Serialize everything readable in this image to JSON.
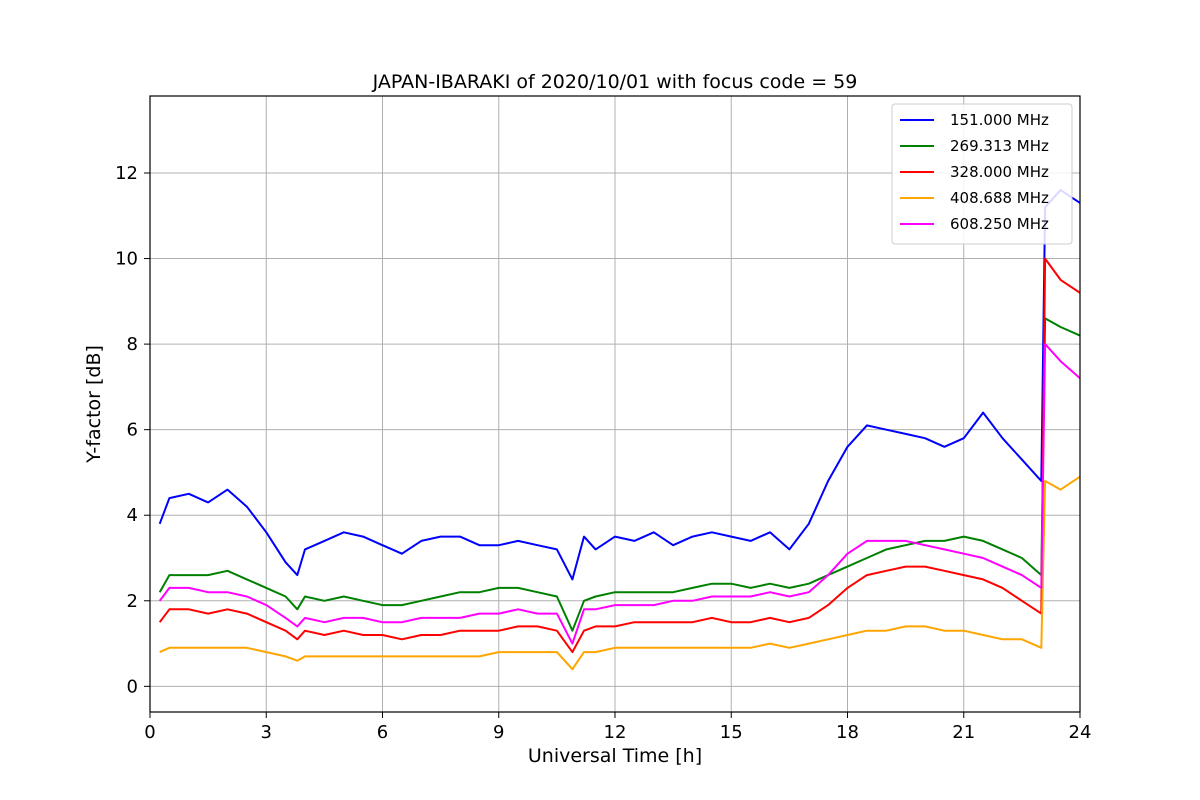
{
  "chart_data": {
    "type": "line",
    "title": "JAPAN-IBARAKI of 2020/10/01 with focus code = 59",
    "xlabel": "Universal Time [h]",
    "ylabel": "Y-factor [dB]",
    "xlim": [
      0,
      24
    ],
    "ylim": [
      -0.6,
      13.8
    ],
    "xticks": [
      0,
      3,
      6,
      9,
      12,
      15,
      18,
      21,
      24
    ],
    "yticks": [
      0,
      2,
      4,
      6,
      8,
      10,
      12
    ],
    "grid": true,
    "legend_position": "top-right",
    "x": [
      0.25,
      0.5,
      1,
      1.5,
      2,
      2.5,
      3,
      3.5,
      3.8,
      4,
      4.5,
      5,
      5.5,
      6,
      6.5,
      7,
      7.5,
      8,
      8.5,
      9,
      9.5,
      10,
      10.5,
      10.9,
      11.2,
      11.5,
      12,
      12.5,
      13,
      13.5,
      14,
      14.5,
      15,
      15.5,
      16,
      16.5,
      17,
      17.5,
      18,
      18.5,
      19,
      19.5,
      20,
      20.5,
      21,
      21.5,
      22,
      22.5,
      23,
      23.1,
      23.5,
      24
    ],
    "series": [
      {
        "name": "151.000 MHz",
        "color": "#0000ff",
        "values": [
          3.8,
          4.4,
          4.5,
          4.3,
          4.6,
          4.2,
          3.6,
          2.9,
          2.6,
          3.2,
          3.4,
          3.6,
          3.5,
          3.3,
          3.1,
          3.4,
          3.5,
          3.5,
          3.3,
          3.3,
          3.4,
          3.3,
          3.2,
          2.5,
          3.5,
          3.2,
          3.5,
          3.4,
          3.6,
          3.3,
          3.5,
          3.6,
          3.5,
          3.4,
          3.6,
          3.2,
          3.8,
          4.8,
          5.6,
          6.1,
          6.0,
          5.9,
          5.8,
          5.6,
          5.8,
          6.4,
          5.8,
          5.3,
          4.8,
          11.2,
          11.6,
          11.3
        ]
      },
      {
        "name": "269.313 MHz",
        "color": "#008000",
        "values": [
          2.2,
          2.6,
          2.6,
          2.6,
          2.7,
          2.5,
          2.3,
          2.1,
          1.8,
          2.1,
          2.0,
          2.1,
          2.0,
          1.9,
          1.9,
          2.0,
          2.1,
          2.2,
          2.2,
          2.3,
          2.3,
          2.2,
          2.1,
          1.3,
          2.0,
          2.1,
          2.2,
          2.2,
          2.2,
          2.2,
          2.3,
          2.4,
          2.4,
          2.3,
          2.4,
          2.3,
          2.4,
          2.6,
          2.8,
          3.0,
          3.2,
          3.3,
          3.4,
          3.4,
          3.5,
          3.4,
          3.2,
          3.0,
          2.6,
          8.6,
          8.4,
          8.2
        ]
      },
      {
        "name": "328.000 MHz",
        "color": "#ff0000",
        "values": [
          1.5,
          1.8,
          1.8,
          1.7,
          1.8,
          1.7,
          1.5,
          1.3,
          1.1,
          1.3,
          1.2,
          1.3,
          1.2,
          1.2,
          1.1,
          1.2,
          1.2,
          1.3,
          1.3,
          1.3,
          1.4,
          1.4,
          1.3,
          0.8,
          1.3,
          1.4,
          1.4,
          1.5,
          1.5,
          1.5,
          1.5,
          1.6,
          1.5,
          1.5,
          1.6,
          1.5,
          1.6,
          1.9,
          2.3,
          2.6,
          2.7,
          2.8,
          2.8,
          2.7,
          2.6,
          2.5,
          2.3,
          2.0,
          1.7,
          10.0,
          9.5,
          9.2
        ]
      },
      {
        "name": "408.688 MHz",
        "color": "#ffa500",
        "values": [
          0.8,
          0.9,
          0.9,
          0.9,
          0.9,
          0.9,
          0.8,
          0.7,
          0.6,
          0.7,
          0.7,
          0.7,
          0.7,
          0.7,
          0.7,
          0.7,
          0.7,
          0.7,
          0.7,
          0.8,
          0.8,
          0.8,
          0.8,
          0.4,
          0.8,
          0.8,
          0.9,
          0.9,
          0.9,
          0.9,
          0.9,
          0.9,
          0.9,
          0.9,
          1.0,
          0.9,
          1.0,
          1.1,
          1.2,
          1.3,
          1.3,
          1.4,
          1.4,
          1.3,
          1.3,
          1.2,
          1.1,
          1.1,
          0.9,
          4.8,
          4.6,
          4.9
        ]
      },
      {
        "name": "608.250 MHz",
        "color": "#ff00ff",
        "values": [
          2.0,
          2.3,
          2.3,
          2.2,
          2.2,
          2.1,
          1.9,
          1.6,
          1.4,
          1.6,
          1.5,
          1.6,
          1.6,
          1.5,
          1.5,
          1.6,
          1.6,
          1.6,
          1.7,
          1.7,
          1.8,
          1.7,
          1.7,
          1.0,
          1.8,
          1.8,
          1.9,
          1.9,
          1.9,
          2.0,
          2.0,
          2.1,
          2.1,
          2.1,
          2.2,
          2.1,
          2.2,
          2.6,
          3.1,
          3.4,
          3.4,
          3.4,
          3.3,
          3.2,
          3.1,
          3.0,
          2.8,
          2.6,
          2.3,
          8.0,
          7.6,
          7.2
        ]
      }
    ]
  }
}
